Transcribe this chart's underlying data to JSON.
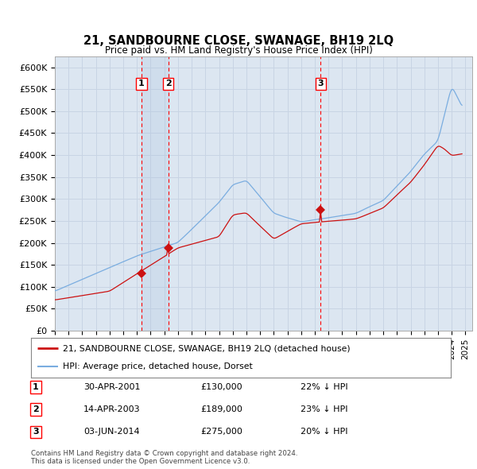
{
  "title": "21, SANDBOURNE CLOSE, SWANAGE, BH19 2LQ",
  "subtitle": "Price paid vs. HM Land Registry's House Price Index (HPI)",
  "background_color": "#ffffff",
  "plot_bg_color": "#dce6f1",
  "grid_color": "#c8d4e4",
  "ylabel_ticks": [
    "£0",
    "£50K",
    "£100K",
    "£150K",
    "£200K",
    "£250K",
    "£300K",
    "£350K",
    "£400K",
    "£450K",
    "£500K",
    "£550K",
    "£600K"
  ],
  "ytick_values": [
    0,
    50000,
    100000,
    150000,
    200000,
    250000,
    300000,
    350000,
    400000,
    450000,
    500000,
    550000,
    600000
  ],
  "ylim": [
    0,
    625000
  ],
  "xlim_start": 1995.0,
  "xlim_end": 2025.5,
  "purchases": [
    {
      "date": 2001.33,
      "price": 130000,
      "label": "1"
    },
    {
      "date": 2003.29,
      "price": 189000,
      "label": "2"
    },
    {
      "date": 2014.42,
      "price": 275000,
      "label": "3"
    }
  ],
  "hpi_color": "#7aade0",
  "price_color": "#cc1111",
  "legend_entries": [
    "21, SANDBOURNE CLOSE, SWANAGE, BH19 2LQ (detached house)",
    "HPI: Average price, detached house, Dorset"
  ],
  "table_rows": [
    {
      "num": "1",
      "date": "30-APR-2001",
      "price": "£130,000",
      "hpi": "22% ↓ HPI"
    },
    {
      "num": "2",
      "date": "14-APR-2003",
      "price": "£189,000",
      "hpi": "23% ↓ HPI"
    },
    {
      "num": "3",
      "date": "03-JUN-2014",
      "price": "£275,000",
      "hpi": "20% ↓ HPI"
    }
  ],
  "footnote": "Contains HM Land Registry data © Crown copyright and database right 2024.\nThis data is licensed under the Open Government Licence v3.0.",
  "shade_between": [
    2001.33,
    2003.29
  ]
}
